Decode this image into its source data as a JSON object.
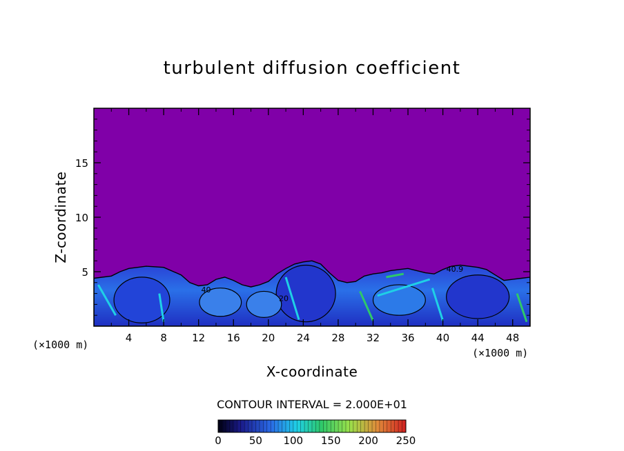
{
  "chart_data": {
    "type": "heatmap",
    "title": "turbulent diffusion coefficient",
    "xlabel": "X-coordinate",
    "ylabel": "Z-coordinate",
    "x_unit_label": "(×1000 m)",
    "y_unit_label": "(×1000 m)",
    "x_range": [
      0,
      50
    ],
    "y_range": [
      0,
      20
    ],
    "x_ticks": [
      4,
      8,
      12,
      16,
      20,
      24,
      28,
      32,
      36,
      40,
      44,
      48
    ],
    "y_ticks": [
      5,
      10,
      15
    ],
    "contour_interval_label": "CONTOUR INTERVAL = 2.000E+01",
    "contour_interval": 20,
    "colorbar": {
      "range": [
        0,
        250
      ],
      "ticks": [
        0,
        50,
        100,
        150,
        200,
        250
      ]
    },
    "background_value": 0,
    "contour_labels": [
      "40",
      "20",
      "40.9"
    ],
    "boundary_layer_top_profile": {
      "x": [
        0,
        2,
        3,
        4,
        6,
        8,
        10,
        11,
        12,
        13,
        14,
        15,
        16,
        17,
        18,
        19,
        20,
        21,
        22,
        23,
        24,
        25,
        26,
        27,
        28,
        29,
        30,
        31,
        32,
        33,
        34,
        35,
        36,
        37,
        38,
        39,
        40,
        41,
        42,
        43,
        44,
        45,
        46,
        47,
        48,
        49,
        50
      ],
      "z": [
        4.4,
        4.6,
        5.0,
        5.3,
        5.5,
        5.4,
        4.7,
        4.0,
        3.7,
        3.8,
        4.3,
        4.5,
        4.2,
        3.8,
        3.6,
        3.8,
        4.1,
        4.8,
        5.3,
        5.7,
        5.9,
        6.0,
        5.7,
        4.9,
        4.2,
        4.0,
        4.1,
        4.6,
        4.8,
        4.9,
        5.1,
        5.2,
        5.3,
        5.1,
        4.9,
        4.8,
        5.2,
        5.5,
        5.6,
        5.5,
        5.4,
        5.2,
        4.7,
        4.2,
        4.3,
        4.4,
        4.5
      ]
    },
    "colors": {
      "background": "#8000a8",
      "low": "#1c1cbe",
      "mid": "#2a6ae6",
      "cyan": "#1fd0e6",
      "green": "#2ec86a"
    }
  }
}
